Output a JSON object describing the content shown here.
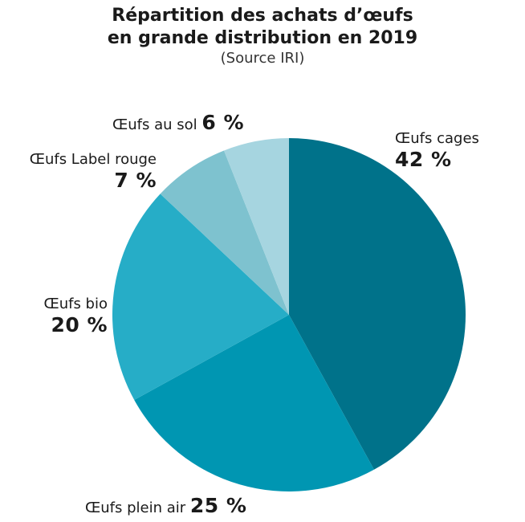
{
  "chart_data": {
    "type": "pie",
    "title_line1": "Répartition des achats d’œufs",
    "title_line2": "en grande distribution en 2019",
    "subtitle": "(Source IRI)",
    "colors": {
      "cages": "#00728a",
      "plein_air": "#0096b2",
      "bio": "#26adc7",
      "label_rouge": "#7ec2cf",
      "sol": "#a6d5e0"
    },
    "slices": [
      {
        "key": "cages",
        "label": "Œufs cages",
        "value": 42,
        "value_label": "42 %"
      },
      {
        "key": "plein_air",
        "label": "Œufs plein air",
        "value": 25,
        "value_label": "25 %"
      },
      {
        "key": "bio",
        "label": "Œufs bio",
        "value": 20,
        "value_label": "20 %"
      },
      {
        "key": "label_rouge",
        "label": "Œufs Label rouge",
        "value": 7,
        "value_label": "7 %"
      },
      {
        "key": "sol",
        "label": "Œufs au sol",
        "value": 6,
        "value_label": "6 %"
      }
    ]
  }
}
